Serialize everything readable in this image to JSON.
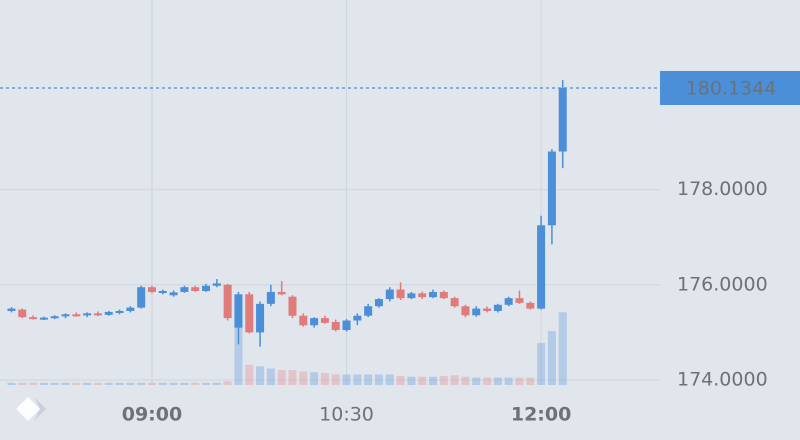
{
  "chart_data": {
    "type": "candlestick",
    "x": [
      475,
      480,
      485,
      490,
      495,
      500,
      505,
      510,
      515,
      520,
      525,
      530,
      535,
      540,
      545,
      550,
      555,
      560,
      565,
      570,
      575,
      580,
      585,
      590,
      595,
      600,
      605,
      610,
      615,
      620,
      625,
      630,
      635,
      640,
      645,
      650,
      655,
      660,
      665,
      670,
      675,
      680,
      685,
      690,
      695,
      700,
      705,
      710,
      715,
      720,
      725,
      730
    ],
    "open": [
      175.45,
      175.48,
      175.32,
      175.29,
      175.31,
      175.34,
      175.38,
      175.36,
      175.4,
      175.37,
      175.43,
      175.45,
      175.52,
      175.95,
      175.85,
      175.78,
      175.85,
      175.95,
      175.87,
      175.98,
      176.0,
      175.1,
      175.8,
      175.0,
      175.6,
      175.85,
      175.75,
      175.35,
      175.15,
      175.3,
      175.22,
      175.05,
      175.25,
      175.35,
      175.55,
      175.7,
      175.9,
      175.72,
      175.82,
      175.74,
      175.85,
      175.72,
      175.55,
      175.36,
      175.5,
      175.45,
      175.58,
      175.72,
      175.62,
      175.5,
      177.25,
      178.8
    ],
    "high": [
      175.53,
      175.5,
      175.36,
      175.33,
      175.36,
      175.4,
      175.42,
      175.42,
      175.44,
      175.45,
      175.48,
      175.55,
      175.98,
      175.98,
      175.9,
      175.88,
      175.98,
      175.98,
      176.02,
      176.12,
      176.02,
      175.85,
      175.85,
      175.65,
      176.0,
      176.08,
      175.78,
      175.4,
      175.32,
      175.35,
      175.27,
      175.28,
      175.4,
      175.6,
      175.72,
      175.95,
      176.05,
      175.85,
      175.86,
      175.9,
      175.88,
      175.75,
      175.58,
      175.55,
      175.54,
      175.6,
      175.75,
      175.88,
      175.65,
      177.45,
      178.85,
      180.3
    ],
    "low": [
      175.42,
      175.3,
      175.27,
      175.26,
      175.28,
      175.3,
      175.33,
      175.32,
      175.34,
      175.35,
      175.38,
      175.42,
      175.5,
      175.82,
      175.8,
      175.75,
      175.83,
      175.85,
      175.85,
      175.95,
      175.25,
      174.75,
      174.98,
      174.7,
      175.55,
      175.78,
      175.3,
      175.12,
      175.1,
      175.18,
      175.02,
      175.02,
      175.15,
      175.32,
      175.52,
      175.65,
      175.68,
      175.7,
      175.7,
      175.72,
      175.7,
      175.52,
      175.32,
      175.33,
      175.42,
      175.42,
      175.55,
      175.6,
      175.48,
      175.48,
      176.85,
      178.45
    ],
    "close": [
      175.5,
      175.32,
      175.29,
      175.31,
      175.34,
      175.38,
      175.36,
      175.4,
      175.37,
      175.43,
      175.45,
      175.52,
      175.95,
      175.85,
      175.87,
      175.84,
      175.95,
      175.87,
      175.98,
      176.03,
      175.3,
      175.8,
      175.0,
      175.6,
      175.85,
      175.8,
      175.35,
      175.15,
      175.3,
      175.2,
      175.05,
      175.25,
      175.35,
      175.55,
      175.7,
      175.9,
      175.72,
      175.82,
      175.74,
      175.85,
      175.72,
      175.55,
      175.36,
      175.5,
      175.45,
      175.58,
      175.72,
      175.62,
      175.5,
      177.25,
      178.8,
      180.1344
    ],
    "volume": [
      3,
      3,
      3,
      3,
      3,
      3,
      3,
      3,
      3,
      3,
      3,
      3,
      3,
      3,
      3,
      3,
      3,
      3,
      3,
      3,
      5,
      100,
      27,
      25,
      22,
      20,
      20,
      18,
      17,
      16,
      14,
      14,
      14,
      14,
      14,
      14,
      12,
      11,
      11,
      11,
      12,
      13,
      11,
      10,
      10,
      10,
      10,
      10,
      10,
      56,
      72,
      97
    ],
    "up_color": "#4a8fd8",
    "down_color": "#e07b7b",
    "last_price": 180.1344,
    "xlim": [
      469.7,
      775
    ],
    "xticks": [
      {
        "value": 540,
        "label": "09:00"
      },
      {
        "value": 630,
        "label": "10:30"
      },
      {
        "value": 720,
        "label": "12:00"
      }
    ],
    "ylim": [
      173.895,
      181.983
    ],
    "yticks": [
      {
        "value": 174,
        "label": "174.0000"
      },
      {
        "value": 176,
        "label": "176.0000"
      },
      {
        "value": 178,
        "label": "178.0000"
      }
    ],
    "grid": true
  }
}
